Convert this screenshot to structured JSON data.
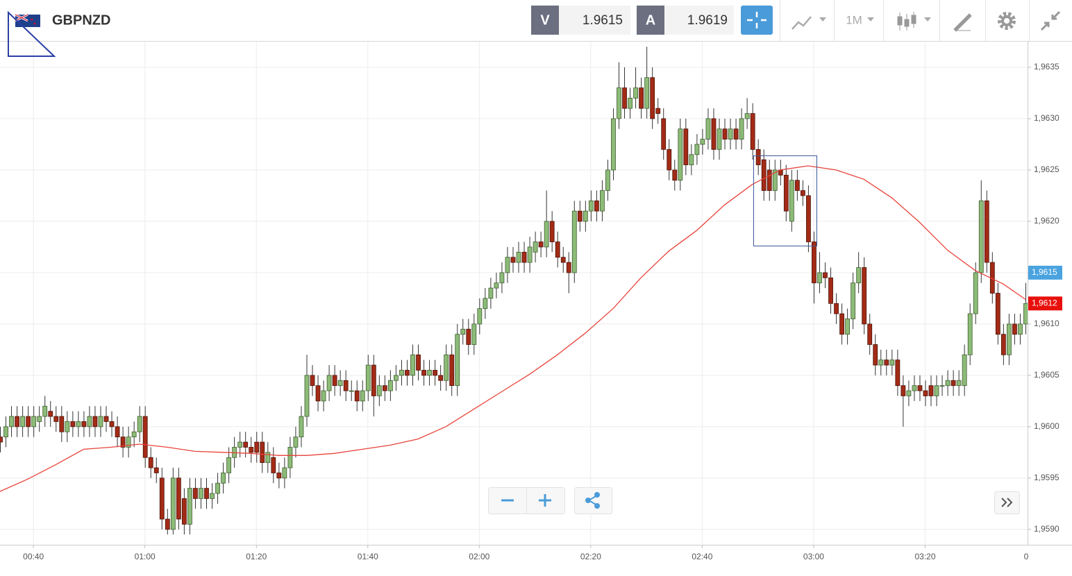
{
  "toolbar": {
    "symbol": "GBPNZD",
    "bid_label": "V",
    "bid": "1.9615",
    "ask_label": "A",
    "ask": "1.9619",
    "interval": "1M"
  },
  "chart_data": {
    "type": "candlestick",
    "up_color": "#8dbb78",
    "down_color": "#a32b16",
    "grid": true,
    "x": [
      "00:34",
      "00:35",
      "00:36",
      "00:37",
      "00:38",
      "00:39",
      "00:40",
      "00:41",
      "00:42",
      "00:43",
      "00:44",
      "00:45",
      "00:46",
      "00:47",
      "00:48",
      "00:49",
      "00:50",
      "00:51",
      "00:52",
      "00:53",
      "00:54",
      "00:55",
      "00:56",
      "00:57",
      "00:58",
      "00:59",
      "01:00",
      "01:01",
      "01:02",
      "01:03",
      "01:04",
      "01:05",
      "01:06",
      "01:07",
      "01:08",
      "01:09",
      "01:10",
      "01:11",
      "01:12",
      "01:13",
      "01:14",
      "01:15",
      "01:16",
      "01:17",
      "01:18",
      "01:19",
      "01:20",
      "01:21",
      "01:22",
      "01:23",
      "01:24",
      "01:25",
      "01:26",
      "01:27",
      "01:28",
      "01:29",
      "01:30",
      "01:31",
      "01:32",
      "01:33",
      "01:34",
      "01:35",
      "01:36",
      "01:37",
      "01:38",
      "01:39",
      "01:40",
      "01:41",
      "01:42",
      "01:43",
      "01:44",
      "01:45",
      "01:46",
      "01:47",
      "01:48",
      "01:49",
      "01:50",
      "01:51",
      "01:52",
      "01:53",
      "01:54",
      "01:55",
      "01:56",
      "01:57",
      "01:58",
      "01:59",
      "02:00",
      "02:01",
      "02:02",
      "02:03",
      "02:04",
      "02:05",
      "02:06",
      "02:07",
      "02:08",
      "02:09",
      "02:10",
      "02:11",
      "02:12",
      "02:13",
      "02:14",
      "02:15",
      "02:16",
      "02:17",
      "02:18",
      "02:19",
      "02:20",
      "02:21",
      "02:22",
      "02:23",
      "02:24",
      "02:25",
      "02:26",
      "02:27",
      "02:28",
      "02:29",
      "02:30",
      "02:31",
      "02:32",
      "02:33",
      "02:34",
      "02:35",
      "02:36",
      "02:37",
      "02:38",
      "02:39",
      "02:40",
      "02:41",
      "02:42",
      "02:43",
      "02:44",
      "02:45",
      "02:46",
      "02:47",
      "02:48",
      "02:49",
      "02:50",
      "02:51",
      "02:52",
      "02:53",
      "02:54",
      "02:55",
      "02:56",
      "02:57",
      "02:58",
      "02:59",
      "03:00",
      "03:01",
      "03:02",
      "03:03",
      "03:04",
      "03:05",
      "03:06",
      "03:07",
      "03:08",
      "03:09",
      "03:10",
      "03:11",
      "03:12",
      "03:13",
      "03:14",
      "03:15",
      "03:16",
      "03:17",
      "03:18",
      "03:19",
      "03:20",
      "03:21",
      "03:22",
      "03:23",
      "03:24",
      "03:25",
      "03:26",
      "03:27",
      "03:28",
      "03:29",
      "03:30",
      "03:31",
      "03:32",
      "03:33",
      "03:34",
      "03:35",
      "03:36",
      "03:37",
      "03:38"
    ],
    "open": [
      1.9599,
      1.9599,
      1.96,
      1.9601,
      1.96,
      1.9601,
      1.96,
      1.96005,
      1.9601,
      1.96015,
      1.9601,
      1.9601,
      1.95995,
      1.96005,
      1.96,
      1.96005,
      1.96,
      1.9601,
      1.96,
      1.9601,
      1.96005,
      1.96,
      1.9599,
      1.9598,
      1.9599,
      1.95995,
      1.9601,
      1.9597,
      1.9596,
      1.9595,
      1.9591,
      1.959,
      1.9595,
      1.9593,
      1.95905,
      1.9594,
      1.9593,
      1.9594,
      1.9593,
      1.95935,
      1.95945,
      1.95955,
      1.9597,
      1.9598,
      1.95985,
      1.9598,
      1.95985,
      1.95985,
      1.95965,
      1.9597,
      1.95955,
      1.9595,
      1.9596,
      1.9598,
      1.9599,
      1.9601,
      1.9605,
      1.9604,
      1.96025,
      1.96035,
      1.9605,
      1.9604,
      1.96045,
      1.96035,
      1.96035,
      1.96025,
      1.96035,
      1.9606,
      1.9603,
      1.9604,
      1.96035,
      1.96045,
      1.9605,
      1.96055,
      1.9605,
      1.9607,
      1.96055,
      1.9605,
      1.96055,
      1.9605,
      1.96045,
      1.9607,
      1.9604,
      1.9609,
      1.96095,
      1.9608,
      1.961,
      1.96115,
      1.96125,
      1.96135,
      1.9614,
      1.9615,
      1.96165,
      1.9616,
      1.9617,
      1.9616,
      1.9617,
      1.9618,
      1.96175,
      1.962,
      1.9618,
      1.96165,
      1.9616,
      1.9615,
      1.9621,
      1.962,
      1.9621,
      1.9622,
      1.9621,
      1.9623,
      1.9625,
      1.963,
      1.9633,
      1.9631,
      1.9632,
      1.9633,
      1.9631,
      1.9634,
      1.9631,
      1.963,
      1.9627,
      1.9625,
      1.9624,
      1.9629,
      1.96255,
      1.96265,
      1.96275,
      1.9628,
      1.963,
      1.9627,
      1.9629,
      1.9628,
      1.9629,
      1.9628,
      1.963,
      1.96305,
      1.9627,
      1.9626,
      1.9625,
      1.9623,
      1.9625,
      1.96245,
      1.962,
      1.9624,
      1.9623,
      1.96225,
      1.9618,
      1.9614,
      1.9615,
      1.96145,
      1.9612,
      1.9611,
      1.9609,
      1.96105,
      1.9614,
      1.96155,
      1.961,
      1.9608,
      1.9606,
      1.96065,
      1.9606,
      1.96065,
      1.9604,
      1.9603,
      1.96035,
      1.9604,
      1.96035,
      1.9604,
      1.9603,
      1.9604,
      1.9604,
      1.96045,
      1.9604,
      1.9604,
      1.9607,
      1.9611,
      1.9615,
      1.9622,
      1.9616,
      1.9613,
      1.9609,
      1.9607,
      1.961,
      1.9609,
      1.961
    ],
    "high": [
      1.96,
      1.9601,
      1.9602,
      1.9602,
      1.9602,
      1.9602,
      1.9602,
      1.9602,
      1.9603,
      1.96025,
      1.9602,
      1.9602,
      1.96015,
      1.96015,
      1.96015,
      1.96015,
      1.9602,
      1.9602,
      1.9602,
      1.9602,
      1.96015,
      1.9601,
      1.96,
      1.96,
      1.96005,
      1.9602,
      1.9602,
      1.9598,
      1.9597,
      1.9596,
      1.9592,
      1.9596,
      1.9596,
      1.9594,
      1.9595,
      1.9595,
      1.9595,
      1.9595,
      1.95945,
      1.95955,
      1.95965,
      1.9598,
      1.9599,
      1.95995,
      1.95995,
      1.9599,
      1.95995,
      1.95995,
      1.95985,
      1.9598,
      1.95965,
      1.9597,
      1.9599,
      1.96,
      1.9602,
      1.9607,
      1.9606,
      1.9605,
      1.96045,
      1.9606,
      1.9606,
      1.96055,
      1.96055,
      1.96045,
      1.96045,
      1.96045,
      1.9607,
      1.9607,
      1.9605,
      1.9605,
      1.96055,
      1.9606,
      1.96065,
      1.96065,
      1.9608,
      1.9608,
      1.96065,
      1.96065,
      1.96065,
      1.9606,
      1.9608,
      1.9608,
      1.961,
      1.96105,
      1.96105,
      1.9611,
      1.96125,
      1.96135,
      1.96145,
      1.9615,
      1.9616,
      1.96175,
      1.96175,
      1.9618,
      1.9618,
      1.96185,
      1.9619,
      1.9619,
      1.9623,
      1.9621,
      1.9619,
      1.96175,
      1.9617,
      1.9622,
      1.9622,
      1.9622,
      1.9623,
      1.9623,
      1.9624,
      1.9626,
      1.9631,
      1.96355,
      1.9635,
      1.9633,
      1.9635,
      1.9634,
      1.9637,
      1.9635,
      1.9632,
      1.9631,
      1.9628,
      1.9626,
      1.963,
      1.963,
      1.96275,
      1.96285,
      1.9629,
      1.9631,
      1.9631,
      1.963,
      1.963,
      1.963,
      1.963,
      1.9631,
      1.9632,
      1.96315,
      1.9628,
      1.9627,
      1.9626,
      1.9626,
      1.9626,
      1.96255,
      1.9625,
      1.9625,
      1.9624,
      1.96235,
      1.9619,
      1.9617,
      1.9616,
      1.96155,
      1.9613,
      1.9612,
      1.96115,
      1.9615,
      1.9617,
      1.96165,
      1.9611,
      1.9609,
      1.96075,
      1.96075,
      1.96075,
      1.96075,
      1.9605,
      1.96045,
      1.9605,
      1.9605,
      1.96045,
      1.9605,
      1.9605,
      1.9605,
      1.96055,
      1.96055,
      1.96055,
      1.9608,
      1.9612,
      1.9616,
      1.9624,
      1.9623,
      1.9617,
      1.9614,
      1.961,
      1.9611,
      1.9611,
      1.9611,
      1.9614
    ],
    "low": [
      1.95975,
      1.9598,
      1.9599,
      1.9599,
      1.9599,
      1.9599,
      1.9599,
      1.95995,
      1.96,
      1.96,
      1.95995,
      1.95985,
      1.95985,
      1.9599,
      1.9599,
      1.9599,
      1.9599,
      1.9599,
      1.9599,
      1.95995,
      1.9599,
      1.9598,
      1.9597,
      1.9597,
      1.9598,
      1.95985,
      1.9596,
      1.9595,
      1.95945,
      1.959,
      1.95895,
      1.95895,
      1.959,
      1.95895,
      1.95895,
      1.9592,
      1.9592,
      1.9592,
      1.9592,
      1.95925,
      1.95935,
      1.95945,
      1.9596,
      1.9597,
      1.9597,
      1.95965,
      1.95965,
      1.95955,
      1.95955,
      1.95945,
      1.9594,
      1.9594,
      1.9595,
      1.9597,
      1.9598,
      1.96,
      1.9603,
      1.96015,
      1.96015,
      1.96025,
      1.9603,
      1.9603,
      1.96025,
      1.96025,
      1.96015,
      1.96015,
      1.96025,
      1.9601,
      1.9602,
      1.96025,
      1.96025,
      1.96035,
      1.9604,
      1.9604,
      1.9604,
      1.96045,
      1.9604,
      1.9604,
      1.9604,
      1.96035,
      1.96035,
      1.9603,
      1.9603,
      1.9608,
      1.9607,
      1.9607,
      1.9609,
      1.96105,
      1.96115,
      1.96125,
      1.9613,
      1.9614,
      1.9615,
      1.9615,
      1.9615,
      1.9615,
      1.9616,
      1.96165,
      1.96165,
      1.9617,
      1.96155,
      1.9615,
      1.9613,
      1.9614,
      1.9619,
      1.9619,
      1.962,
      1.962,
      1.962,
      1.9622,
      1.9624,
      1.9629,
      1.963,
      1.963,
      1.9631,
      1.963,
      1.963,
      1.9629,
      1.96295,
      1.9626,
      1.9624,
      1.9623,
      1.9623,
      1.96245,
      1.96245,
      1.96255,
      1.96265,
      1.9627,
      1.9626,
      1.9626,
      1.9627,
      1.9627,
      1.9627,
      1.9627,
      1.9629,
      1.9626,
      1.96245,
      1.9622,
      1.9622,
      1.9622,
      1.96235,
      1.962,
      1.9619,
      1.9622,
      1.96215,
      1.9617,
      1.9612,
      1.9613,
      1.96135,
      1.9611,
      1.961,
      1.9608,
      1.9608,
      1.96095,
      1.9613,
      1.9609,
      1.9607,
      1.9605,
      1.9605,
      1.9605,
      1.9605,
      1.9603,
      1.96,
      1.9602,
      1.96025,
      1.96025,
      1.9602,
      1.9602,
      1.9602,
      1.9603,
      1.9603,
      1.9603,
      1.9603,
      1.9603,
      1.9606,
      1.961,
      1.9614,
      1.9615,
      1.9612,
      1.9608,
      1.9606,
      1.9606,
      1.9608,
      1.9608,
      1.9609
    ],
    "close": [
      1.95985,
      1.96,
      1.9601,
      1.96,
      1.9601,
      1.96,
      1.9601,
      1.9601,
      1.9602,
      1.9601,
      1.96005,
      1.95995,
      1.96005,
      1.96,
      1.96005,
      1.96,
      1.9601,
      1.96,
      1.9601,
      1.96005,
      1.96,
      1.9599,
      1.9598,
      1.9599,
      1.95995,
      1.9601,
      1.9597,
      1.9596,
      1.95955,
      1.9591,
      1.959,
      1.9595,
      1.9591,
      1.95905,
      1.9594,
      1.9593,
      1.9594,
      1.9593,
      1.95935,
      1.95945,
      1.95955,
      1.9597,
      1.9598,
      1.95985,
      1.9598,
      1.95975,
      1.95975,
      1.95965,
      1.95975,
      1.95955,
      1.9595,
      1.9596,
      1.9598,
      1.9599,
      1.9601,
      1.9605,
      1.9604,
      1.96025,
      1.96035,
      1.9605,
      1.9604,
      1.96045,
      1.96035,
      1.96035,
      1.96025,
      1.96035,
      1.9606,
      1.9603,
      1.9604,
      1.96035,
      1.96045,
      1.9605,
      1.96055,
      1.9605,
      1.9607,
      1.96055,
      1.9605,
      1.96055,
      1.9605,
      1.96045,
      1.9607,
      1.9604,
      1.9609,
      1.96095,
      1.9608,
      1.961,
      1.96115,
      1.96125,
      1.96135,
      1.9614,
      1.9615,
      1.96165,
      1.9616,
      1.9617,
      1.9616,
      1.96175,
      1.9618,
      1.96175,
      1.962,
      1.9618,
      1.96165,
      1.9616,
      1.9615,
      1.9621,
      1.962,
      1.9621,
      1.9622,
      1.9621,
      1.9623,
      1.9625,
      1.963,
      1.9633,
      1.9631,
      1.9632,
      1.9633,
      1.9631,
      1.9634,
      1.963,
      1.96305,
      1.9627,
      1.9625,
      1.9624,
      1.9629,
      1.96255,
      1.96265,
      1.96275,
      1.9628,
      1.963,
      1.9627,
      1.9629,
      1.9628,
      1.9629,
      1.9628,
      1.963,
      1.96305,
      1.9627,
      1.96255,
      1.9623,
      1.9623,
      1.9625,
      1.96245,
      1.9621,
      1.9624,
      1.9623,
      1.96225,
      1.9618,
      1.9614,
      1.9615,
      1.96145,
      1.9612,
      1.9611,
      1.9609,
      1.96105,
      1.9614,
      1.96155,
      1.961,
      1.9608,
      1.9606,
      1.96065,
      1.9606,
      1.96065,
      1.9604,
      1.9603,
      1.96035,
      1.9604,
      1.96035,
      1.9603,
      1.9603,
      1.9604,
      1.9604,
      1.96045,
      1.9604,
      1.96045,
      1.9607,
      1.9611,
      1.9615,
      1.9622,
      1.9616,
      1.9613,
      1.9609,
      1.9607,
      1.961,
      1.9609,
      1.961,
      1.9612
    ],
    "overlay": {
      "type": "line",
      "color": "#e8433a",
      "x": [
        "00:34",
        "00:39",
        "00:44",
        "00:49",
        "00:54",
        "00:59",
        "01:04",
        "01:09",
        "01:14",
        "01:19",
        "01:24",
        "01:29",
        "01:34",
        "01:39",
        "01:44",
        "01:49",
        "01:54",
        "01:59",
        "02:04",
        "02:09",
        "02:14",
        "02:19",
        "02:24",
        "02:29",
        "02:34",
        "02:39",
        "02:44",
        "02:49",
        "02:54",
        "02:59",
        "03:04",
        "03:09",
        "03:14",
        "03:19",
        "03:24",
        "03:29",
        "03:34",
        "03:38"
      ],
      "values": [
        1.95937,
        1.95949,
        1.95963,
        1.95978,
        1.9598,
        1.95983,
        1.9598,
        1.95976,
        1.95975,
        1.95974,
        1.95972,
        1.95972,
        1.95974,
        1.95978,
        1.95982,
        1.95988,
        1.96,
        1.96017,
        1.96034,
        1.96051,
        1.9607,
        1.96091,
        1.96115,
        1.96145,
        1.96171,
        1.96191,
        1.96216,
        1.96236,
        1.9625,
        1.96254,
        1.9625,
        1.96241,
        1.96223,
        1.96199,
        1.96172,
        1.96152,
        1.96139,
        1.96124
      ]
    },
    "price_tags": [
      {
        "value": 1.9615,
        "label": "1,9615",
        "color": "#4aa3df"
      },
      {
        "value": 1.9612,
        "label": "1,9612",
        "color": "#e8100c"
      }
    ],
    "xlim": [
      "00:34",
      "03:39"
    ],
    "xticks": [
      "00:40",
      "01:00",
      "01:20",
      "01:40",
      "02:00",
      "02:20",
      "02:40",
      "03:00",
      "03:20",
      {
        "value": "03:40",
        "label": "0"
      }
    ],
    "ylim": [
      1.95885,
      1.96375
    ],
    "yticks": [
      {
        "value": 1.959,
        "label": "1,9590"
      },
      {
        "value": 1.9595,
        "label": "1,9595"
      },
      {
        "value": 1.96,
        "label": "1,9600"
      },
      {
        "value": 1.9605,
        "label": "1,9605"
      },
      {
        "value": 1.961,
        "label": "1,9610"
      },
      {
        "value": 1.9615,
        "label": "1,9615"
      },
      {
        "value": 1.962,
        "label": "1,9620"
      },
      {
        "value": 1.9625,
        "label": "1,9625"
      },
      {
        "value": 1.963,
        "label": "1,9630"
      },
      {
        "value": 1.9635,
        "label": "1,9635"
      }
    ]
  }
}
